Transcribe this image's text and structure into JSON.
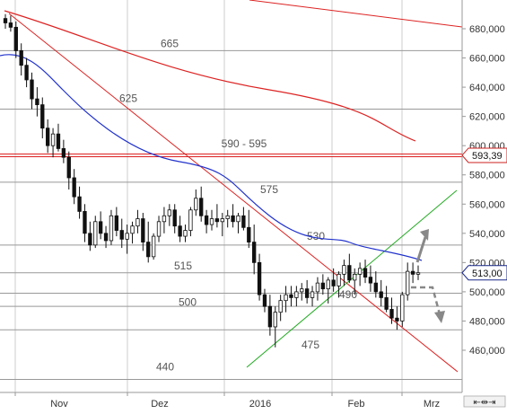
{
  "chart_data": {
    "type": "candlestick",
    "y_axis": {
      "ticks": [
        460,
        480,
        500,
        520,
        540,
        560,
        580,
        600,
        620,
        640,
        660,
        680
      ],
      "tick_labels": [
        "460,000",
        "480,000",
        "500,000",
        "520,000",
        "540,000",
        "560,000",
        "580,000",
        "600,000",
        "620,000",
        "640,000",
        "660,000",
        "680,000"
      ],
      "ylim": [
        437,
        700
      ]
    },
    "x_axis": {
      "tick_labels": [
        "Nov",
        "Dez",
        "2016",
        "Feb",
        "Mrz"
      ]
    },
    "levels": [
      {
        "label": "665",
        "value": 665
      },
      {
        "label": "625",
        "value": 625
      },
      {
        "label": "590 - 595",
        "value": 593.39,
        "highlight": true
      },
      {
        "label": "575",
        "value": 575
      },
      {
        "label": "530",
        "value": 532
      },
      {
        "label": "515",
        "value": 513
      },
      {
        "label": "500",
        "value": 499
      },
      {
        "label": "490",
        "value": 490
      },
      {
        "label": "475",
        "value": 474
      },
      {
        "label": "440",
        "value": 440
      }
    ],
    "price_badges": [
      {
        "label": "593,39",
        "value": 593.39,
        "color": "#cc2222"
      },
      {
        "label": "513,00",
        "value": 513.0,
        "color": "#1a2a8a"
      }
    ],
    "colors": {
      "up": "#ffffff",
      "down": "#111111",
      "moving_average": "#2233cc",
      "trend_red": "#dd2222",
      "trend_green": "#22aa22",
      "grid": "#bbbbbb",
      "arrow": "#888888"
    },
    "candles_ohlc": [
      [
        687,
        690,
        680,
        684
      ],
      [
        684,
        689,
        678,
        681
      ],
      [
        681,
        685,
        660,
        665
      ],
      [
        665,
        670,
        648,
        655
      ],
      [
        655,
        660,
        640,
        645
      ],
      [
        645,
        650,
        625,
        632
      ],
      [
        632,
        640,
        620,
        628
      ],
      [
        628,
        633,
        605,
        612
      ],
      [
        612,
        618,
        595,
        600
      ],
      [
        600,
        612,
        592,
        608
      ],
      [
        608,
        615,
        596,
        598
      ],
      [
        598,
        604,
        588,
        592
      ],
      [
        592,
        596,
        570,
        578
      ],
      [
        578,
        584,
        560,
        565
      ],
      [
        565,
        572,
        550,
        555
      ],
      [
        555,
        560,
        534,
        540
      ],
      [
        540,
        548,
        528,
        532
      ],
      [
        532,
        552,
        530,
        548
      ],
      [
        548,
        555,
        536,
        540
      ],
      [
        540,
        545,
        530,
        535
      ],
      [
        535,
        556,
        532,
        552
      ],
      [
        552,
        558,
        538,
        542
      ],
      [
        542,
        550,
        530,
        536
      ],
      [
        536,
        546,
        526,
        540
      ],
      [
        540,
        548,
        533,
        545
      ],
      [
        545,
        556,
        540,
        550
      ],
      [
        550,
        554,
        528,
        534
      ],
      [
        534,
        548,
        520,
        524
      ],
      [
        524,
        540,
        522,
        538
      ],
      [
        538,
        552,
        534,
        548
      ],
      [
        548,
        558,
        540,
        552
      ],
      [
        552,
        560,
        545,
        556
      ],
      [
        556,
        560,
        540,
        545
      ],
      [
        545,
        552,
        534,
        538
      ],
      [
        538,
        546,
        534,
        542
      ],
      [
        542,
        558,
        538,
        556
      ],
      [
        556,
        570,
        552,
        564
      ],
      [
        564,
        572,
        548,
        552
      ],
      [
        552,
        556,
        540,
        546
      ],
      [
        546,
        556,
        542,
        550
      ],
      [
        550,
        560,
        544,
        548
      ],
      [
        548,
        554,
        538,
        550
      ],
      [
        550,
        556,
        544,
        552
      ],
      [
        552,
        560,
        544,
        548
      ],
      [
        548,
        554,
        540,
        552
      ],
      [
        552,
        558,
        542,
        544
      ],
      [
        544,
        556,
        530,
        534
      ],
      [
        534,
        546,
        512,
        520
      ],
      [
        520,
        526,
        494,
        498
      ],
      [
        498,
        502,
        486,
        490
      ],
      [
        490,
        498,
        470,
        476
      ],
      [
        476,
        490,
        462,
        486
      ],
      [
        486,
        498,
        480,
        494
      ],
      [
        494,
        504,
        486,
        498
      ],
      [
        498,
        504,
        490,
        496
      ],
      [
        496,
        504,
        490,
        500
      ],
      [
        500,
        506,
        494,
        502
      ],
      [
        502,
        508,
        492,
        496
      ],
      [
        496,
        504,
        490,
        500
      ],
      [
        500,
        510,
        494,
        506
      ],
      [
        506,
        512,
        498,
        502
      ],
      [
        502,
        510,
        492,
        508
      ],
      [
        508,
        516,
        500,
        504
      ],
      [
        504,
        514,
        496,
        512
      ],
      [
        512,
        522,
        504,
        518
      ],
      [
        518,
        526,
        506,
        508
      ],
      [
        508,
        516,
        498,
        512
      ],
      [
        512,
        520,
        504,
        516
      ],
      [
        516,
        522,
        506,
        510
      ],
      [
        510,
        518,
        500,
        506
      ],
      [
        506,
        514,
        496,
        500
      ],
      [
        500,
        508,
        490,
        496
      ],
      [
        496,
        504,
        486,
        488
      ],
      [
        488,
        496,
        478,
        482
      ],
      [
        482,
        490,
        474,
        480
      ],
      [
        480,
        500,
        476,
        498
      ],
      [
        498,
        520,
        494,
        514
      ],
      [
        514,
        520,
        506,
        512
      ],
      [
        512,
        518,
        508,
        513
      ]
    ]
  }
}
